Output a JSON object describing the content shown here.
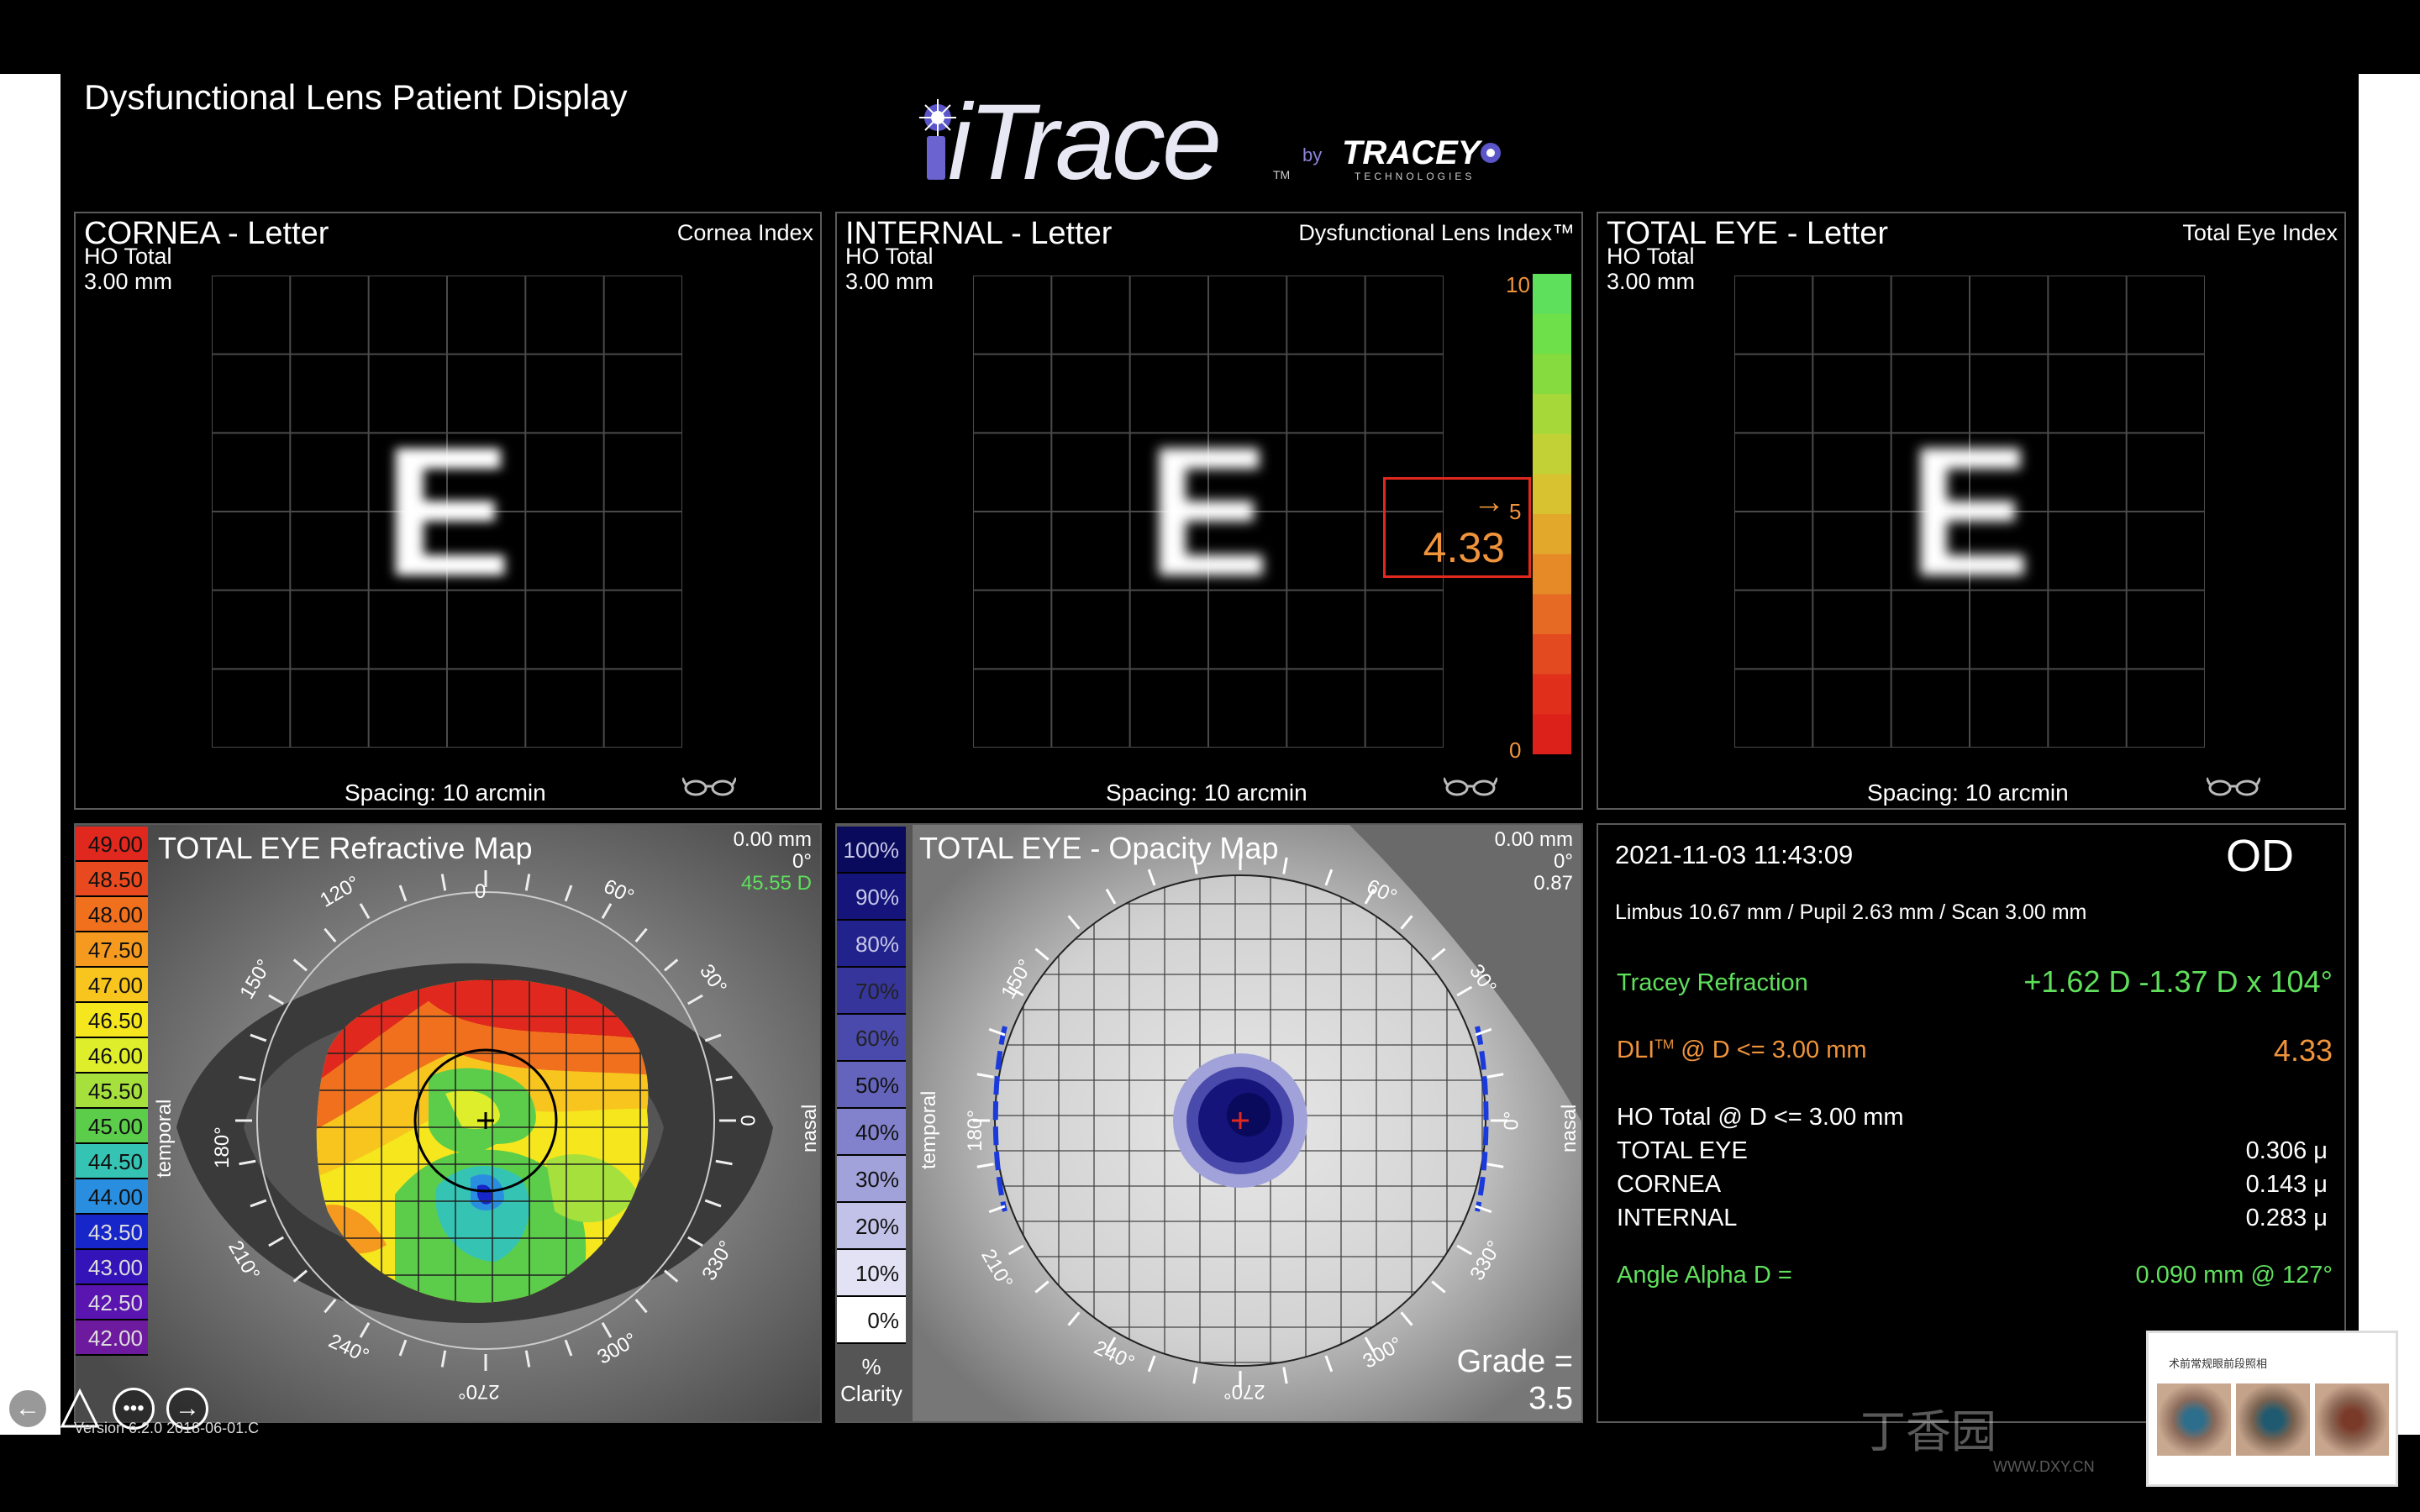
{
  "app": {
    "title": "Dysfunctional Lens Patient Display",
    "logo_text": "iTrace",
    "logo_tm": "TM",
    "logo_by": "by",
    "brand": "TRACEY",
    "brand_sub": "TECHNOLOGIES",
    "version": "Version 6.2.0 2018-06-01.C"
  },
  "panels": {
    "cornea": {
      "title": "CORNEA - Letter",
      "sub1": "HO Total",
      "sub2": "3.00 mm",
      "index": "Cornea Index",
      "spacing": "Spacing:  10 arcmin",
      "letter": "E"
    },
    "internal": {
      "title": "INTERNAL - Letter",
      "sub1": "HO Total",
      "sub2": "3.00 mm",
      "index": "Dysfunctional Lens Index™",
      "spacing": "Spacing:  10 arcmin",
      "letter": "E",
      "scale_top": "10",
      "scale_mid": "5",
      "scale_bottom": "0",
      "dli_value": "4.33",
      "dli_level": 0.433,
      "arrow": "→"
    },
    "total": {
      "title": "TOTAL EYE - Letter",
      "sub1": "HO Total",
      "sub2": "3.00 mm",
      "index": "Total Eye Index",
      "spacing": "Spacing:  10 arcmin",
      "letter": "E"
    },
    "refractive": {
      "title": "TOTAL EYE  Refractive Map",
      "mm": "0.00 mm",
      "deg": "0°",
      "power": "45.55 D",
      "temporal": "temporal",
      "nasal": "nasal",
      "angles": {
        "a0": "0",
        "a30": "30°",
        "a60": "60°",
        "a120": "120°",
        "a150": "150°",
        "a180": "180°",
        "a210": "210°",
        "a240": "240°",
        "a270": "270°",
        "a300": "300°",
        "a330": "330°"
      },
      "scale": [
        {
          "label": "49.00",
          "color": "#e0281e"
        },
        {
          "label": "48.50",
          "color": "#e8491e"
        },
        {
          "label": "48.00",
          "color": "#f0701e"
        },
        {
          "label": "47.50",
          "color": "#f59a1e"
        },
        {
          "label": "47.00",
          "color": "#f7c51e"
        },
        {
          "label": "46.50",
          "color": "#f5e61e"
        },
        {
          "label": "46.00",
          "color": "#dfee2a"
        },
        {
          "label": "45.50",
          "color": "#a6e03c"
        },
        {
          "label": "45.00",
          "color": "#5ccd4a"
        },
        {
          "label": "44.50",
          "color": "#35c4b4"
        },
        {
          "label": "44.00",
          "color": "#2a8ee0"
        },
        {
          "label": "43.50",
          "color": "#1626c8"
        },
        {
          "label": "43.00",
          "color": "#3414b8"
        },
        {
          "label": "42.50",
          "color": "#5a14b0"
        },
        {
          "label": "42.00",
          "color": "#6e1a9e"
        }
      ]
    },
    "opacity": {
      "title": "TOTAL EYE - Opacity Map",
      "mm": "0.00 mm",
      "deg": "0°",
      "val": "0.87",
      "temporal": "temporal",
      "nasal": "nasal",
      "grade_label": "Grade =",
      "grade_value": "3.5",
      "clarity_pct": "%",
      "clarity_label": "Clarity",
      "angles": {
        "a0": "0°",
        "a30": "30°",
        "a60": "60°",
        "a150": "150°",
        "a180": "180°",
        "a210": "210°",
        "a240": "240°",
        "a270": "270°",
        "a300": "300°",
        "a330": "330°"
      },
      "scale": [
        {
          "label": "100%",
          "color": "#0a0a5c"
        },
        {
          "label": "90%",
          "color": "#14147a"
        },
        {
          "label": "80%",
          "color": "#22228c"
        },
        {
          "label": "70%",
          "color": "#35359c"
        },
        {
          "label": "60%",
          "color": "#4a4aac"
        },
        {
          "label": "50%",
          "color": "#6464bc"
        },
        {
          "label": "40%",
          "color": "#8282cc"
        },
        {
          "label": "30%",
          "color": "#a2a2da"
        },
        {
          "label": "20%",
          "color": "#c2c2e8"
        },
        {
          "label": "10%",
          "color": "#e2e2f4"
        },
        {
          "label": "0%",
          "color": "#ffffff"
        }
      ]
    },
    "info": {
      "datetime": "2021-11-03  11:43:09",
      "eye": "OD",
      "limbus": "Limbus 10.67 mm  /  Pupil 2.63 mm  /  Scan 3.00 mm",
      "refraction_label": "Tracey Refraction",
      "refraction_value": "+1.62 D -1.37 D x 104°",
      "dli_label": "DLI",
      "dli_tm": "TM",
      "dli_suffix": " @ D <= 3.00 mm",
      "dli_value": "4.33",
      "ho_label": "HO Total @ D <= 3.00 mm",
      "rows": [
        {
          "label": "TOTAL EYE",
          "value": "0.306 μ"
        },
        {
          "label": "CORNEA",
          "value": "0.143 μ"
        },
        {
          "label": "INTERNAL",
          "value": "0.283 μ"
        }
      ],
      "angle_label": "Angle Alpha  D =",
      "angle_value": "0.090 mm @ 127°"
    }
  },
  "thumbnail": {
    "title": "术前常规眼前段照相"
  },
  "watermark": {
    "text": "丁香园",
    "url": "WWW.DXY.CN"
  },
  "colors": {
    "green": "#5fe05c",
    "orange": "#f0943c",
    "panel_border": "#5a5a5a"
  }
}
